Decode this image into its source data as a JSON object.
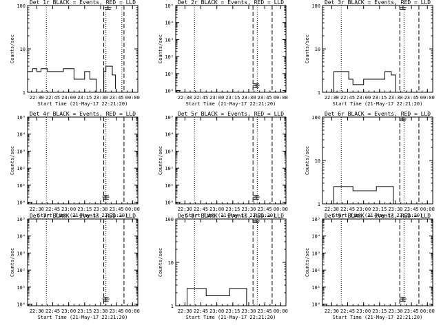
{
  "figure": {
    "time_ticks": [
      "22:30",
      "22:45",
      "23:00",
      "23:15",
      "23:30",
      "23:45",
      "00:00"
    ],
    "xlabel": "Start Time (21-May-17 22:21:20)",
    "ylabel": "Counts/sec",
    "colors": {
      "background": "#ffffff",
      "foreground": "#000000"
    }
  },
  "chart_data": [
    {
      "type": "line",
      "title": "Det 1r BLACK = Events, RED = LLD",
      "y_scale": "log",
      "ylim": [
        1,
        100
      ],
      "yticks": [
        "1",
        "10",
        "100"
      ],
      "xlim": [
        "22:21:20",
        "00:05:00"
      ],
      "markers": {
        "dotted": [
          "22:39",
          "23:35",
          "23:50"
        ],
        "dashed": [
          "23:33",
          "23:52"
        ]
      },
      "series": [
        {
          "x": [
            "22:21:20",
            "22:26",
            "22:26",
            "22:30",
            "22:30",
            "22:34",
            "22:34",
            "22:40",
            "22:40",
            "22:55",
            "22:55",
            "23:05",
            "23:05",
            "23:15",
            "23:15",
            "23:20",
            "23:20",
            "23:26",
            "23:26",
            "23:33",
            "23:33",
            "23:35",
            "23:35",
            "23:41",
            "23:41",
            "23:44",
            "23:44"
          ],
          "values": [
            3,
            3,
            3.5,
            3.5,
            3,
            3,
            3.5,
            3.5,
            3,
            3,
            3.5,
            3.5,
            2,
            2,
            3,
            3,
            2,
            2,
            1,
            1,
            3,
            3,
            4,
            4,
            2.5,
            2.5,
            1.2
          ]
        }
      ],
      "error_bar": {
        "x": "23:37",
        "y": 90,
        "ylow": 82,
        "yhigh": 100
      }
    },
    {
      "type": "line",
      "title": "Det 2r BLACK = Events, RED = LLD",
      "y_scale": "log",
      "ylim": [
        0.8,
        100000
      ],
      "yticks": [
        "10⁰",
        "10¹",
        "10²",
        "10³",
        "10⁴",
        "10⁵"
      ],
      "xlim": [
        "22:21:20",
        "00:05:00"
      ],
      "markers": {
        "dotted": [
          "22:39",
          "23:38"
        ],
        "dashed": [
          "23:34",
          "23:52"
        ]
      },
      "series": [
        {
          "x": [
            "22:21:20",
            "22:26"
          ],
          "values": [
            1,
            1
          ]
        }
      ],
      "error_bar": {
        "x": "23:37",
        "y": 2,
        "ylow": 1.5,
        "yhigh": 2.5
      }
    },
    {
      "type": "line",
      "title": "Det 3r BLACK = Events, RED = LLD",
      "y_scale": "log",
      "ylim": [
        1,
        100
      ],
      "yticks": [
        "1",
        "10",
        "100"
      ],
      "xlim": [
        "22:21:20",
        "00:05:00"
      ],
      "markers": {
        "dotted": [
          "22:39",
          "23:38"
        ],
        "dashed": [
          "23:34",
          "23:52"
        ]
      },
      "series": [
        {
          "x": [
            "22:21:20",
            "22:26",
            "22:32",
            "22:32",
            "22:46",
            "22:46",
            "22:50",
            "22:50",
            "23:00",
            "23:00",
            "23:20",
            "23:20",
            "23:26",
            "23:26",
            "23:30",
            "23:30",
            "23:33"
          ],
          "values": [
            1,
            1,
            1,
            3,
            3,
            2,
            2,
            1.5,
            1.5,
            2,
            2,
            3,
            3,
            2.5,
            2.5,
            1,
            1
          ]
        }
      ],
      "error_bar": {
        "x": "23:37",
        "y": 90,
        "ylow": 82,
        "yhigh": 100
      }
    },
    {
      "type": "line",
      "title": "Det 4r BLACK = Events, RED = LLD",
      "y_scale": "log",
      "ylim": [
        0.8,
        100000
      ],
      "yticks": [
        "10⁰",
        "10¹",
        "10²",
        "10³",
        "10⁴",
        "10⁵"
      ],
      "xlim": [
        "22:21:20",
        "00:05:00"
      ],
      "markers": {
        "dotted": [
          "22:39",
          "23:35"
        ],
        "dashed": [
          "23:33",
          "23:52"
        ]
      },
      "series": [
        {
          "x": [
            "22:21:20",
            "22:26"
          ],
          "values": [
            1,
            1
          ]
        }
      ],
      "error_bar": {
        "x": "23:35",
        "y": 2,
        "ylow": 1.5,
        "yhigh": 2.5
      }
    },
    {
      "type": "line",
      "title": "Det 5r BLACK = Events, RED = LLD",
      "y_scale": "log",
      "ylim": [
        0.8,
        100000
      ],
      "yticks": [
        "10⁰",
        "10¹",
        "10²",
        "10³",
        "10⁴",
        "10⁵"
      ],
      "xlim": [
        "22:21:20",
        "00:05:00"
      ],
      "markers": {
        "dotted": [
          "22:39",
          "23:38"
        ],
        "dashed": [
          "23:34",
          "23:52"
        ]
      },
      "series": [
        {
          "x": [
            "22:21:20",
            "22:26"
          ],
          "values": [
            1,
            1
          ]
        }
      ],
      "error_bar": {
        "x": "23:37",
        "y": 2,
        "ylow": 1.5,
        "yhigh": 2.5
      }
    },
    {
      "type": "line",
      "title": "Det 6r BLACK = Events, RED = LLD",
      "y_scale": "log",
      "ylim": [
        1,
        100
      ],
      "yticks": [
        "1",
        "10",
        "100"
      ],
      "xlim": [
        "22:21:20",
        "00:05:00"
      ],
      "markers": {
        "dotted": [
          "22:39",
          "23:38"
        ],
        "dashed": [
          "23:34",
          "23:52"
        ]
      },
      "series": [
        {
          "x": [
            "22:21:20",
            "22:26",
            "22:32",
            "22:32",
            "22:50",
            "22:50",
            "23:12",
            "23:12",
            "23:28",
            "23:28",
            "23:33"
          ],
          "values": [
            1,
            1,
            1,
            2.5,
            2.5,
            2,
            2,
            2.5,
            2.5,
            1,
            1
          ]
        }
      ],
      "error_bar": {
        "x": "23:37",
        "y": 90,
        "ylow": 82,
        "yhigh": 100
      }
    },
    {
      "type": "line",
      "title": "Det 7r BLACK = Events, RED = LLD",
      "y_scale": "log",
      "ylim": [
        0.8,
        100000
      ],
      "yticks": [
        "10⁰",
        "10¹",
        "10²",
        "10³",
        "10⁴",
        "10⁵"
      ],
      "xlim": [
        "22:21:20",
        "00:05:00"
      ],
      "markers": {
        "dotted": [
          "22:39",
          "23:35"
        ],
        "dashed": [
          "23:33",
          "23:52"
        ]
      },
      "series": [
        {
          "x": [
            "22:21:20",
            "22:26"
          ],
          "values": [
            1,
            1
          ]
        }
      ],
      "error_bar": {
        "x": "23:35",
        "y": 2,
        "ylow": 1.5,
        "yhigh": 2.5
      }
    },
    {
      "type": "line",
      "title": "Det 8r BLACK = Events, RED = LLD",
      "y_scale": "log",
      "ylim": [
        1,
        100
      ],
      "yticks": [
        "1",
        "10",
        "100"
      ],
      "xlim": [
        "22:21:20",
        "00:05:00"
      ],
      "markers": {
        "dotted": [
          "22:39",
          "23:38"
        ],
        "dashed": [
          "23:34",
          "23:52"
        ]
      },
      "series": [
        {
          "x": [
            "22:21:20",
            "22:26",
            "22:32",
            "22:32",
            "22:50",
            "22:50",
            "23:12",
            "23:12",
            "23:28",
            "23:28",
            "23:33"
          ],
          "values": [
            1,
            1,
            1,
            2.5,
            2.5,
            1.7,
            1.7,
            2.5,
            2.5,
            1,
            1
          ]
        }
      ],
      "error_bar": {
        "x": "23:37",
        "y": 90,
        "ylow": 82,
        "yhigh": 100
      }
    },
    {
      "type": "line",
      "title": "Det 9r BLACK = Events, RED = LLD",
      "y_scale": "log",
      "ylim": [
        0.8,
        100000
      ],
      "yticks": [
        "10⁰",
        "10¹",
        "10²",
        "10³",
        "10⁴",
        "10⁵"
      ],
      "xlim": [
        "22:21:20",
        "00:05:00"
      ],
      "markers": {
        "dotted": [
          "22:39",
          "23:38"
        ],
        "dashed": [
          "23:34",
          "23:52"
        ]
      },
      "series": [
        {
          "x": [
            "22:21:20",
            "22:26"
          ],
          "values": [
            1,
            1
          ]
        }
      ],
      "error_bar": {
        "x": "23:37",
        "y": 2,
        "ylow": 1.5,
        "yhigh": 2.5
      }
    }
  ]
}
